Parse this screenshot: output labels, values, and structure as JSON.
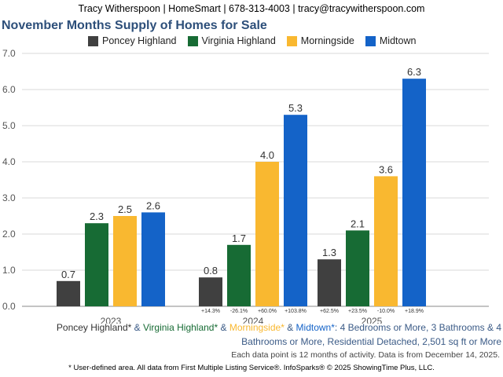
{
  "header": {
    "contact": "Tracy Witherspoon | HomeSmart | 678-313-4003 | tracy@tracywitherspoon.com"
  },
  "chart_data": {
    "type": "bar",
    "title": "November Months Supply of Homes for Sale",
    "xlabel": "",
    "ylabel": "",
    "ylim": [
      0,
      7
    ],
    "yticks": [
      "0.0",
      "1.0",
      "2.0",
      "3.0",
      "4.0",
      "5.0",
      "6.0",
      "7.0"
    ],
    "grid": true,
    "legend_position": "top",
    "categories": [
      "2023",
      "2024",
      "2025"
    ],
    "series": [
      {
        "name": "Poncey Highland",
        "color": "#404040",
        "values": [
          0.7,
          0.8,
          1.3
        ],
        "labels": [
          "0.7",
          "0.8",
          "1.3"
        ],
        "changes": [
          "",
          "+14.3%",
          "+62.5%"
        ]
      },
      {
        "name": "Virginia Highland",
        "color": "#176b34",
        "values": [
          2.3,
          1.7,
          2.1
        ],
        "labels": [
          "2.3",
          "1.7",
          "2.1"
        ],
        "changes": [
          "",
          "-26.1%",
          "+23.5%"
        ]
      },
      {
        "name": "Morningside",
        "color": "#f9b830",
        "values": [
          2.5,
          4.0,
          3.6
        ],
        "labels": [
          "2.5",
          "4.0",
          "3.6"
        ],
        "changes": [
          "",
          "+60.0%",
          "-10.0%"
        ]
      },
      {
        "name": "Midtown",
        "color": "#1463c8",
        "values": [
          2.6,
          5.3,
          6.3
        ],
        "labels": [
          "2.6",
          "5.3",
          "6.3"
        ],
        "changes": [
          "",
          "+103.8%",
          "+18.9%"
        ]
      }
    ]
  },
  "footnote": {
    "areas": [
      {
        "text": "Poncey Highland*",
        "color": "#333333"
      },
      {
        "text": " & ",
        "color": "#3a5a86"
      },
      {
        "text": "Virginia Highland*",
        "color": "#176b34"
      },
      {
        "text": " & ",
        "color": "#3a5a86"
      },
      {
        "text": "Morningside*",
        "color": "#f9b830"
      },
      {
        "text": " & ",
        "color": "#3a5a86"
      },
      {
        "text": "Midtown*",
        "color": "#1463c8"
      }
    ],
    "criteria_line1": ": 4 Bedrooms or More, 3 Bathrooms & 4",
    "criteria_line2": "Bathrooms or More, Residential Detached, 2,501 sq ft or More",
    "note": "Each data point is 12 months of activity. Data is from December 14, 2025.",
    "source": "* User-defined area. All data from First Multiple Listing Service®. InfoSparks® © 2025 ShowingTime Plus, LLC."
  }
}
